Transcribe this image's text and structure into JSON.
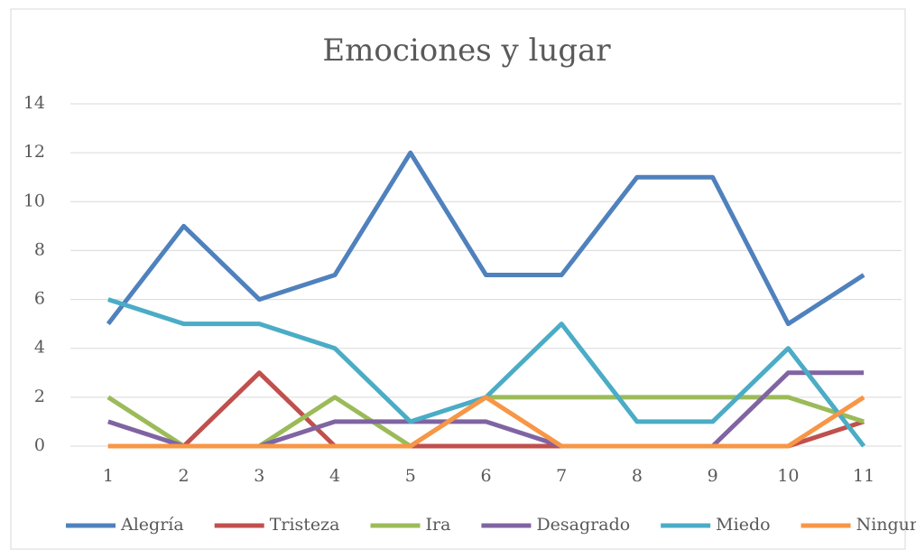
{
  "chart_data": {
    "type": "line",
    "title": "Emociones y lugar",
    "categories": [
      "1",
      "2",
      "3",
      "4",
      "5",
      "6",
      "7",
      "8",
      "9",
      "10",
      "11"
    ],
    "series": [
      {
        "name": "Alegría",
        "color": "#4f81bd",
        "values": [
          5,
          9,
          6,
          7,
          12,
          7,
          7,
          11,
          11,
          5,
          7
        ]
      },
      {
        "name": "Tristeza",
        "color": "#c0504d",
        "values": [
          0,
          0,
          3,
          0,
          0,
          0,
          0,
          0,
          0,
          0,
          1
        ]
      },
      {
        "name": "Ira",
        "color": "#9bbb59",
        "values": [
          2,
          0,
          0,
          2,
          0,
          2,
          2,
          2,
          2,
          2,
          1
        ]
      },
      {
        "name": "Desagrado",
        "color": "#8064a2",
        "values": [
          1,
          0,
          0,
          1,
          1,
          1,
          0,
          0,
          0,
          3,
          3
        ]
      },
      {
        "name": "Miedo",
        "color": "#4bacc6",
        "values": [
          6,
          5,
          5,
          4,
          1,
          2,
          5,
          1,
          1,
          4,
          0
        ]
      },
      {
        "name": "Ninguno",
        "color": "#f79646",
        "values": [
          0,
          0,
          0,
          0,
          0,
          2,
          0,
          0,
          0,
          0,
          2
        ]
      }
    ],
    "ylim": [
      0,
      14
    ],
    "yticks": [
      0,
      2,
      4,
      6,
      8,
      10,
      12,
      14
    ],
    "grid": true,
    "legend": "bottom"
  }
}
